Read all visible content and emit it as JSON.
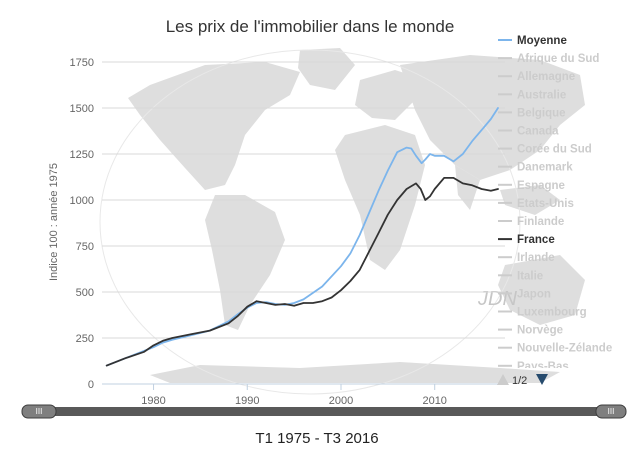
{
  "chart_data": {
    "type": "line",
    "title": "Les prix de l'immobilier dans le monde",
    "ylabel": "Indice 100 : année 1975",
    "xlabel": "",
    "xlim": [
      1974.5,
      2017.5
    ],
    "ylim": [
      0,
      1750
    ],
    "x_ticks": [
      "1980",
      "1990",
      "2000",
      "2010"
    ],
    "y_ticks": [
      "0",
      "250",
      "500",
      "750",
      "1000",
      "1250",
      "1500",
      "1750"
    ],
    "grid": true,
    "legend_position": "right",
    "series": [
      {
        "name": "Moyenne",
        "color": "#7cb5ec",
        "x": [
          1975,
          1977,
          1979,
          1980,
          1981,
          1982,
          1984,
          1986,
          1988,
          1989,
          1990,
          1991,
          1992,
          1993,
          1994,
          1995,
          1996,
          1998,
          2000,
          2001,
          2002,
          2003,
          2004,
          2005,
          2006,
          2007,
          2007.5,
          2008,
          2008.6,
          2009,
          2009.5,
          2010,
          2011,
          2012,
          2013,
          2014,
          2015,
          2016,
          2016.75
        ],
        "y": [
          100,
          140,
          180,
          200,
          225,
          240,
          265,
          290,
          340,
          380,
          415,
          440,
          445,
          435,
          430,
          440,
          460,
          530,
          640,
          710,
          810,
          930,
          1050,
          1160,
          1260,
          1285,
          1280,
          1240,
          1200,
          1220,
          1250,
          1240,
          1240,
          1210,
          1250,
          1320,
          1380,
          1440,
          1500
        ]
      },
      {
        "name": "France",
        "color": "#333333",
        "x": [
          1975,
          1977,
          1979,
          1980,
          1981,
          1982,
          1984,
          1986,
          1988,
          1989,
          1990,
          1991,
          1992,
          1993,
          1994,
          1995,
          1996,
          1997,
          1998,
          1999,
          2000,
          2001,
          2002,
          2003,
          2004,
          2005,
          2006,
          2007,
          2008,
          2008.5,
          2009,
          2009.5,
          2010,
          2011,
          2012,
          2013,
          2014,
          2015,
          2016,
          2016.75
        ],
        "y": [
          100,
          140,
          175,
          210,
          235,
          250,
          270,
          290,
          330,
          370,
          420,
          450,
          440,
          430,
          435,
          425,
          440,
          440,
          450,
          470,
          510,
          560,
          620,
          720,
          820,
          920,
          1000,
          1060,
          1090,
          1060,
          1000,
          1020,
          1060,
          1120,
          1120,
          1090,
          1080,
          1060,
          1050,
          1060
        ]
      }
    ]
  },
  "legend": {
    "items": [
      {
        "label": "Moyenne",
        "active": true,
        "color": "#7cb5ec"
      },
      {
        "label": "Afrique du Sud",
        "active": false
      },
      {
        "label": "Allemagne",
        "active": false
      },
      {
        "label": "Australie",
        "active": false
      },
      {
        "label": "Belgique",
        "active": false
      },
      {
        "label": "Canada",
        "active": false
      },
      {
        "label": "Corée du Sud",
        "active": false
      },
      {
        "label": "Danemark",
        "active": false
      },
      {
        "label": "Espagne",
        "active": false
      },
      {
        "label": "Etats-Unis",
        "active": false
      },
      {
        "label": "Finlande",
        "active": false
      },
      {
        "label": "France",
        "active": true,
        "color": "#333333"
      },
      {
        "label": "Irlande",
        "active": false
      },
      {
        "label": "Italie",
        "active": false
      },
      {
        "label": "Japon",
        "active": false
      },
      {
        "label": "Luxembourg",
        "active": false
      },
      {
        "label": "Norvège",
        "active": false
      },
      {
        "label": "Nouvelle-Zélande",
        "active": false
      },
      {
        "label": "Pays-Bas",
        "active": false
      }
    ],
    "pager": "1/2",
    "inactive_color": "#cccccc"
  },
  "watermark": "JDN",
  "range_selector": {
    "label": "T1 1975 - T3 2016",
    "handle_grip": "III"
  }
}
